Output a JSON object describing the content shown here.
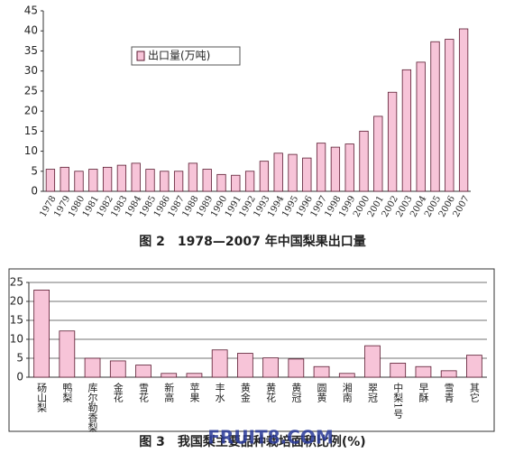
{
  "chart_data": [
    {
      "type": "bar",
      "caption": "图 2　1978—2007 年中国梨果出口量",
      "legend": "出口量(万吨)",
      "color": "#f7c4d8",
      "categories": [
        "1978",
        "1979",
        "1980",
        "1981",
        "1982",
        "1983",
        "1984",
        "1985",
        "1986",
        "1987",
        "1988",
        "1989",
        "1990",
        "1991",
        "1992",
        "1993",
        "1994",
        "1995",
        "1996",
        "1997",
        "1998",
        "1999",
        "2000",
        "2001",
        "2002",
        "2003",
        "2004",
        "2005",
        "2006",
        "2007"
      ],
      "values": [
        5.5,
        6,
        5,
        5.5,
        6,
        6.5,
        7,
        5.5,
        5,
        5,
        7,
        5.5,
        4.2,
        4,
        5,
        7.5,
        9.5,
        9.2,
        8.3,
        12,
        11,
        11.8,
        15,
        18.7,
        24.7,
        30.3,
        32.2,
        37.3,
        37.9,
        40.5
      ],
      "ylim": [
        0,
        45
      ],
      "yticks": [
        0,
        5,
        10,
        15,
        20,
        25,
        30,
        35,
        40,
        45
      ],
      "grid": false
    },
    {
      "type": "bar",
      "caption": "图 3　我国梨主要品种栽培面积比例(%)",
      "watermark": "FRUIT8.COM",
      "color": "#f7c4d8",
      "categories": [
        "砀山梨",
        "鸭梨",
        "库尔勒香梨",
        "金花",
        "雪花",
        "新高",
        "苹果",
        "丰水",
        "黄金",
        "黄花",
        "黄冠",
        "圆黄",
        "湘南",
        "翠冠",
        "中梨1号",
        "早酥",
        "雪青",
        "其它"
      ],
      "values": [
        23,
        12.2,
        5,
        4.3,
        3.2,
        1,
        1,
        7.2,
        6.3,
        5.1,
        4.8,
        2.8,
        1,
        8.3,
        3.7,
        2.8,
        1.7,
        5.8
      ],
      "ylim": [
        0,
        25
      ],
      "yticks": [
        0,
        5,
        10,
        15,
        20,
        25
      ],
      "grid": true
    }
  ]
}
